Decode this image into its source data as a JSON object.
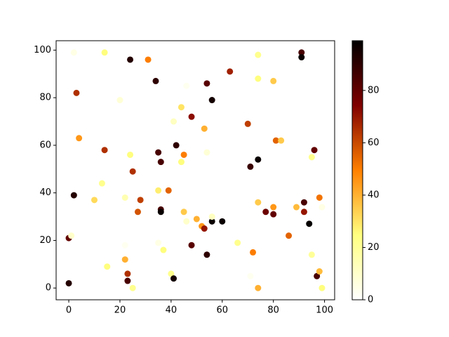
{
  "chart_data": {
    "type": "scatter",
    "x": [
      2,
      14,
      24,
      31,
      63,
      74,
      91,
      91,
      3,
      20,
      34,
      54,
      56,
      74,
      80,
      46,
      44,
      48,
      41,
      53,
      70,
      4,
      14,
      24,
      35,
      36,
      42,
      45,
      44,
      54,
      81,
      83,
      71,
      74,
      96,
      95,
      25,
      2,
      13,
      10,
      22,
      28,
      35,
      39,
      27,
      36,
      36,
      45,
      46,
      50,
      52,
      53,
      56,
      56,
      60,
      74,
      77,
      80,
      80,
      92,
      92,
      98,
      99,
      89,
      94,
      0,
      1,
      22,
      22,
      35,
      37,
      48,
      54,
      66,
      72,
      86,
      95,
      15,
      23,
      23,
      25,
      40,
      41,
      71,
      74,
      97,
      98,
      99,
      0
    ],
    "y": [
      99,
      99,
      96,
      96,
      91,
      98,
      99,
      97,
      82,
      79,
      87,
      86,
      79,
      88,
      87,
      85,
      76,
      72,
      70,
      67,
      69,
      63,
      58,
      56,
      57,
      53,
      60,
      56,
      53,
      57,
      62,
      62,
      51,
      54,
      58,
      55,
      49,
      39,
      44,
      37,
      38,
      37,
      41,
      41,
      32,
      33,
      32,
      32,
      28,
      29,
      26,
      25,
      28,
      30,
      28,
      36,
      32,
      34,
      31,
      36,
      32,
      38,
      34,
      34,
      27,
      21,
      22,
      18,
      12,
      19,
      16,
      18,
      14,
      19,
      15,
      22,
      14,
      9,
      6,
      3,
      0,
      6,
      4,
      5,
      0,
      5,
      7,
      0,
      2
    ],
    "c": [
      5,
      25,
      92,
      50,
      68,
      22,
      85,
      97,
      65,
      8,
      90,
      82,
      95,
      25,
      35,
      3,
      30,
      72,
      12,
      40,
      62,
      45,
      65,
      25,
      85,
      85,
      90,
      50,
      25,
      8,
      55,
      35,
      88,
      97,
      80,
      22,
      65,
      92,
      22,
      32,
      15,
      62,
      28,
      55,
      58,
      85,
      97,
      35,
      10,
      40,
      45,
      70,
      97,
      12,
      97,
      35,
      78,
      45,
      80,
      85,
      70,
      52,
      5,
      38,
      98,
      80,
      10,
      3,
      40,
      5,
      25,
      82,
      90,
      22,
      50,
      55,
      20,
      25,
      65,
      85,
      22,
      22,
      95,
      3,
      40,
      85,
      38,
      25,
      92
    ],
    "colormap": "afmhot_r",
    "xlim": [
      -4.95,
      103.95
    ],
    "ylim": [
      -4.95,
      103.95
    ],
    "xticks": [
      0,
      20,
      40,
      60,
      80,
      100
    ],
    "yticks": [
      0,
      20,
      40,
      60,
      80,
      100
    ],
    "clim": [
      0,
      99
    ],
    "cticks": [
      0,
      20,
      40,
      60,
      80
    ]
  }
}
